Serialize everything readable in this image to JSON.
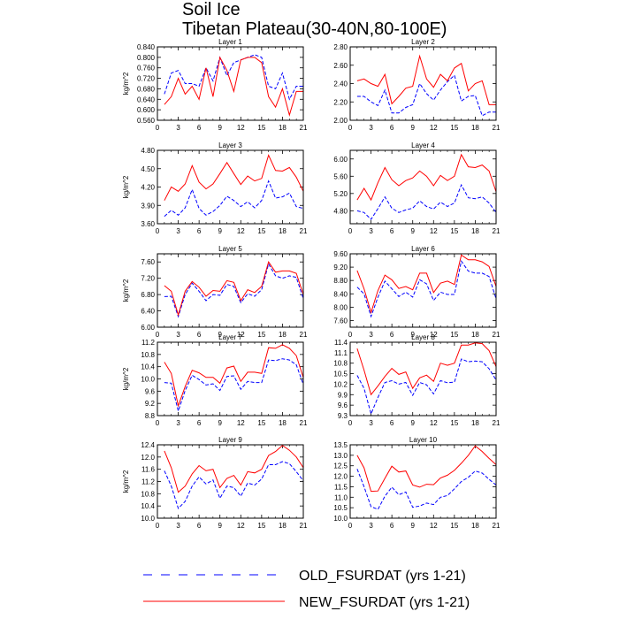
{
  "title": "Soil Ice",
  "subtitle": "Tibetan Plateau(30-40N,80-100E)",
  "legend": {
    "old_label": "OLD_FSURDAT (yrs 1-21)",
    "new_label": "NEW_FSURDAT (yrs 1-21)"
  },
  "colors": {
    "old": "#0000ff",
    "new": "#ff0000"
  },
  "chart_data": [
    {
      "type": "line",
      "title": "Layer 1",
      "xlabel": "",
      "ylabel": "kg/m^2",
      "x": [
        1,
        2,
        3,
        4,
        5,
        6,
        7,
        8,
        9,
        10,
        11,
        12,
        13,
        14,
        15,
        16,
        17,
        18,
        19,
        20,
        21
      ],
      "xlim": [
        0,
        21
      ],
      "xticks": [
        0,
        3,
        6,
        9,
        12,
        15,
        18,
        21
      ],
      "ylim": [
        0.56,
        0.84
      ],
      "yticks": [
        "0.560",
        "0.600",
        "0.640",
        "0.680",
        "0.720",
        "0.760",
        "0.800",
        "0.840"
      ],
      "series": [
        {
          "name": "OLD_FSURDAT (yrs 1-21)",
          "style": "dashed",
          "values": [
            0.66,
            0.74,
            0.75,
            0.7,
            0.7,
            0.69,
            0.76,
            0.71,
            0.8,
            0.73,
            0.78,
            0.79,
            0.8,
            0.81,
            0.8,
            0.69,
            0.68,
            0.74,
            0.64,
            0.69,
            0.69
          ]
        },
        {
          "name": "NEW_FSURDAT (yrs 1-21)",
          "style": "solid",
          "values": [
            0.62,
            0.65,
            0.72,
            0.66,
            0.69,
            0.64,
            0.76,
            0.65,
            0.8,
            0.75,
            0.67,
            0.79,
            0.8,
            0.8,
            0.78,
            0.65,
            0.61,
            0.68,
            0.58,
            0.67,
            0.67
          ]
        }
      ]
    },
    {
      "type": "line",
      "title": "Layer 2",
      "xlabel": "",
      "ylabel": "",
      "x": [
        1,
        2,
        3,
        4,
        5,
        6,
        7,
        8,
        9,
        10,
        11,
        12,
        13,
        14,
        15,
        16,
        17,
        18,
        19,
        20,
        21
      ],
      "xlim": [
        0,
        21
      ],
      "xticks": [
        0,
        3,
        6,
        9,
        12,
        15,
        18,
        21
      ],
      "ylim": [
        2.0,
        2.8
      ],
      "yticks": [
        "2.00",
        "2.20",
        "2.40",
        "2.60",
        "2.80"
      ],
      "series": [
        {
          "name": "OLD_FSURDAT (yrs 1-21)",
          "style": "dashed",
          "values": [
            2.26,
            2.26,
            2.2,
            2.16,
            2.33,
            2.08,
            2.08,
            2.14,
            2.17,
            2.4,
            2.29,
            2.22,
            2.33,
            2.42,
            2.49,
            2.21,
            2.26,
            2.27,
            2.05,
            2.09,
            2.09
          ]
        },
        {
          "name": "NEW_FSURDAT (yrs 1-21)",
          "style": "solid",
          "values": [
            2.43,
            2.45,
            2.4,
            2.37,
            2.5,
            2.18,
            2.26,
            2.35,
            2.37,
            2.7,
            2.45,
            2.36,
            2.5,
            2.43,
            2.57,
            2.62,
            2.32,
            2.4,
            2.43,
            2.17,
            2.17
          ]
        }
      ]
    },
    {
      "type": "line",
      "title": "Layer 3",
      "xlabel": "",
      "ylabel": "kg/m^2",
      "x": [
        1,
        2,
        3,
        4,
        5,
        6,
        7,
        8,
        9,
        10,
        11,
        12,
        13,
        14,
        15,
        16,
        17,
        18,
        19,
        20,
        21
      ],
      "xlim": [
        0,
        21
      ],
      "xticks": [
        0,
        3,
        6,
        9,
        12,
        15,
        18,
        21
      ],
      "ylim": [
        3.6,
        4.8
      ],
      "yticks": [
        "3.60",
        "3.90",
        "4.20",
        "4.50",
        "4.80"
      ],
      "series": [
        {
          "name": "OLD_FSURDAT (yrs 1-21)",
          "style": "dashed",
          "values": [
            3.72,
            3.82,
            3.74,
            3.86,
            4.16,
            3.85,
            3.74,
            3.8,
            3.9,
            4.05,
            3.98,
            3.88,
            3.96,
            3.86,
            3.98,
            4.3,
            4.02,
            4.04,
            4.1,
            3.88,
            3.85
          ]
        },
        {
          "name": "NEW_FSURDAT (yrs 1-21)",
          "style": "solid",
          "values": [
            3.98,
            4.2,
            4.13,
            4.25,
            4.55,
            4.28,
            4.17,
            4.25,
            4.42,
            4.6,
            4.42,
            4.24,
            4.38,
            4.3,
            4.34,
            4.72,
            4.47,
            4.46,
            4.52,
            4.36,
            4.13
          ]
        }
      ]
    },
    {
      "type": "line",
      "title": "Layer 4",
      "xlabel": "",
      "ylabel": "",
      "x": [
        1,
        2,
        3,
        4,
        5,
        6,
        7,
        8,
        9,
        10,
        11,
        12,
        13,
        14,
        15,
        16,
        17,
        18,
        19,
        20,
        21
      ],
      "xlim": [
        0,
        21
      ],
      "xticks": [
        0,
        3,
        6,
        9,
        12,
        15,
        18,
        21
      ],
      "ylim": [
        4.5,
        6.2
      ],
      "yticks": [
        "4.80",
        "5.20",
        "5.60",
        "6.00"
      ],
      "series": [
        {
          "name": "OLD_FSURDAT (yrs 1-21)",
          "style": "dashed",
          "values": [
            4.8,
            4.76,
            4.6,
            4.85,
            5.12,
            4.86,
            4.76,
            4.82,
            4.86,
            5.03,
            4.9,
            4.84,
            5.0,
            4.9,
            4.98,
            5.4,
            5.1,
            5.08,
            5.12,
            4.98,
            4.76
          ]
        },
        {
          "name": "NEW_FSURDAT (yrs 1-21)",
          "style": "solid",
          "values": [
            5.05,
            5.32,
            5.05,
            5.45,
            5.8,
            5.52,
            5.38,
            5.5,
            5.56,
            5.72,
            5.6,
            5.38,
            5.62,
            5.5,
            5.6,
            6.1,
            5.82,
            5.8,
            5.86,
            5.72,
            5.24
          ]
        }
      ]
    },
    {
      "type": "line",
      "title": "Layer 5",
      "xlabel": "",
      "ylabel": "kg/m^2",
      "x": [
        1,
        2,
        3,
        4,
        5,
        6,
        7,
        8,
        9,
        10,
        11,
        12,
        13,
        14,
        15,
        16,
        17,
        18,
        19,
        20,
        21
      ],
      "xlim": [
        0,
        21
      ],
      "xticks": [
        0,
        3,
        6,
        9,
        12,
        15,
        18,
        21
      ],
      "ylim": [
        6.0,
        7.8
      ],
      "yticks": [
        "6.00",
        "6.40",
        "6.80",
        "7.20",
        "7.60"
      ],
      "series": [
        {
          "name": "OLD_FSURDAT (yrs 1-21)",
          "style": "dashed",
          "values": [
            6.75,
            6.76,
            6.26,
            6.8,
            7.08,
            6.88,
            6.65,
            6.8,
            6.78,
            7.05,
            7.0,
            6.6,
            6.82,
            6.76,
            6.92,
            7.55,
            7.26,
            7.2,
            7.26,
            7.22,
            6.7
          ]
        },
        {
          "name": "NEW_FSURDAT (yrs 1-21)",
          "style": "solid",
          "values": [
            7.02,
            6.88,
            6.3,
            6.88,
            7.12,
            6.98,
            6.76,
            6.9,
            6.88,
            7.14,
            7.1,
            6.65,
            6.92,
            6.85,
            7.0,
            7.6,
            7.35,
            7.38,
            7.38,
            7.32,
            6.8
          ]
        }
      ]
    },
    {
      "type": "line",
      "title": "Layer 6",
      "xlabel": "",
      "ylabel": "",
      "x": [
        1,
        2,
        3,
        4,
        5,
        6,
        7,
        8,
        9,
        10,
        11,
        12,
        13,
        14,
        15,
        16,
        17,
        18,
        19,
        20,
        21
      ],
      "xlim": [
        0,
        21
      ],
      "xticks": [
        0,
        3,
        6,
        9,
        12,
        15,
        18,
        21
      ],
      "ylim": [
        7.4,
        9.6
      ],
      "yticks": [
        "7.60",
        "8.00",
        "8.40",
        "8.80",
        "9.20",
        "9.60"
      ],
      "series": [
        {
          "name": "OLD_FSURDAT (yrs 1-21)",
          "style": "dashed",
          "values": [
            8.6,
            8.4,
            7.72,
            8.3,
            8.78,
            8.55,
            8.32,
            8.45,
            8.3,
            8.82,
            8.7,
            8.2,
            8.45,
            8.38,
            8.38,
            9.38,
            9.08,
            9.02,
            9.02,
            8.92,
            8.25
          ]
        },
        {
          "name": "NEW_FSURDAT (yrs 1-21)",
          "style": "solid",
          "values": [
            9.1,
            8.55,
            7.84,
            8.5,
            8.96,
            8.82,
            8.56,
            8.62,
            8.52,
            9.02,
            9.02,
            8.44,
            8.72,
            8.78,
            8.68,
            9.56,
            9.42,
            9.42,
            9.36,
            9.22,
            8.62
          ]
        }
      ]
    },
    {
      "type": "line",
      "title": "Layer 7",
      "xlabel": "",
      "ylabel": "kg/m^2",
      "x": [
        1,
        2,
        3,
        4,
        5,
        6,
        7,
        8,
        9,
        10,
        11,
        12,
        13,
        14,
        15,
        16,
        17,
        18,
        19,
        20,
        21
      ],
      "xlim": [
        0,
        21
      ],
      "xticks": [
        0,
        3,
        6,
        9,
        12,
        15,
        18,
        21
      ],
      "ylim": [
        8.8,
        11.2
      ],
      "yticks": [
        "8.8",
        "9.2",
        "9.6",
        "10.0",
        "10.4",
        "10.8",
        "11.2"
      ],
      "series": [
        {
          "name": "OLD_FSURDAT (yrs 1-21)",
          "style": "dashed",
          "values": [
            9.88,
            9.86,
            8.95,
            9.62,
            10.12,
            9.98,
            9.8,
            9.84,
            9.62,
            10.08,
            10.1,
            9.66,
            9.92,
            9.88,
            9.88,
            10.62,
            10.6,
            10.66,
            10.62,
            10.46,
            9.82
          ]
        },
        {
          "name": "NEW_FSURDAT (yrs 1-21)",
          "style": "solid",
          "values": [
            10.55,
            10.18,
            9.12,
            9.75,
            10.28,
            10.2,
            10.05,
            10.05,
            9.86,
            10.36,
            10.42,
            9.92,
            10.22,
            10.22,
            10.18,
            11.02,
            11.0,
            11.12,
            11.0,
            10.76,
            10.04
          ]
        }
      ]
    },
    {
      "type": "line",
      "title": "Layer 8",
      "xlabel": "",
      "ylabel": "",
      "x": [
        1,
        2,
        3,
        4,
        5,
        6,
        7,
        8,
        9,
        10,
        11,
        12,
        13,
        14,
        15,
        16,
        17,
        18,
        19,
        20,
        21
      ],
      "xlim": [
        0,
        21
      ],
      "xticks": [
        0,
        3,
        6,
        9,
        12,
        15,
        18,
        21
      ],
      "ylim": [
        9.3,
        11.4
      ],
      "yticks": [
        "9.3",
        "9.6",
        "9.9",
        "10.2",
        "10.5",
        "10.8",
        "11.1",
        "11.4"
      ],
      "series": [
        {
          "name": "OLD_FSURDAT (yrs 1-21)",
          "style": "dashed",
          "values": [
            10.45,
            10.08,
            9.35,
            9.82,
            10.25,
            10.3,
            10.2,
            10.25,
            9.88,
            10.25,
            10.18,
            9.92,
            10.3,
            10.24,
            10.26,
            10.92,
            10.84,
            10.86,
            10.84,
            10.64,
            10.32
          ]
        },
        {
          "name": "NEW_FSURDAT (yrs 1-21)",
          "style": "solid",
          "values": [
            11.22,
            10.6,
            9.9,
            10.15,
            10.42,
            10.65,
            10.48,
            10.55,
            10.08,
            10.38,
            10.46,
            10.28,
            10.8,
            10.74,
            10.8,
            11.32,
            11.32,
            11.38,
            11.36,
            11.16,
            10.7
          ]
        }
      ]
    },
    {
      "type": "line",
      "title": "Layer 9",
      "xlabel": "",
      "ylabel": "kg/m^2",
      "x": [
        1,
        2,
        3,
        4,
        5,
        6,
        7,
        8,
        9,
        10,
        11,
        12,
        13,
        14,
        15,
        16,
        17,
        18,
        19,
        20,
        21
      ],
      "xlim": [
        0,
        21
      ],
      "xticks": [
        0,
        3,
        6,
        9,
        12,
        15,
        18,
        21
      ],
      "ylim": [
        10.0,
        12.4
      ],
      "yticks": [
        "10.0",
        "10.4",
        "10.8",
        "11.2",
        "11.6",
        "12.0",
        "12.4"
      ],
      "series": [
        {
          "name": "OLD_FSURDAT (yrs 1-21)",
          "style": "dashed",
          "values": [
            11.55,
            11.05,
            10.32,
            10.55,
            11.05,
            11.35,
            11.12,
            11.25,
            10.65,
            11.05,
            11.0,
            10.72,
            11.15,
            11.08,
            11.28,
            11.75,
            11.75,
            11.85,
            11.78,
            11.52,
            11.22
          ]
        },
        {
          "name": "NEW_FSURDAT (yrs 1-21)",
          "style": "solid",
          "values": [
            12.2,
            11.65,
            10.85,
            11.05,
            11.45,
            11.72,
            11.55,
            11.6,
            11.0,
            11.3,
            11.4,
            11.08,
            11.52,
            11.48,
            11.6,
            12.05,
            12.18,
            12.38,
            12.22,
            12.0,
            11.65
          ]
        }
      ]
    },
    {
      "type": "line",
      "title": "Layer 10",
      "xlabel": "",
      "ylabel": "",
      "x": [
        1,
        2,
        3,
        4,
        5,
        6,
        7,
        8,
        9,
        10,
        11,
        12,
        13,
        14,
        15,
        16,
        17,
        18,
        19,
        20,
        21
      ],
      "xlim": [
        0,
        21
      ],
      "xticks": [
        0,
        3,
        6,
        9,
        12,
        15,
        18,
        21
      ],
      "ylim": [
        10.0,
        13.5
      ],
      "yticks": [
        "10.0",
        "10.5",
        "11.0",
        "11.5",
        "12.0",
        "12.5",
        "13.0",
        "13.5"
      ],
      "series": [
        {
          "name": "OLD_FSURDAT (yrs 1-21)",
          "style": "dashed",
          "values": [
            12.35,
            11.5,
            10.55,
            10.42,
            11.05,
            11.48,
            11.12,
            11.25,
            10.52,
            10.58,
            10.72,
            10.65,
            11.0,
            11.08,
            11.4,
            11.75,
            11.95,
            12.25,
            12.15,
            11.85,
            11.58
          ]
        },
        {
          "name": "NEW_FSURDAT (yrs 1-21)",
          "style": "solid",
          "values": [
            13.0,
            12.4,
            11.28,
            11.3,
            11.9,
            12.48,
            12.2,
            12.25,
            11.58,
            11.48,
            11.62,
            11.6,
            11.92,
            12.05,
            12.28,
            12.62,
            13.0,
            13.45,
            13.18,
            12.85,
            12.55
          ]
        }
      ]
    }
  ]
}
